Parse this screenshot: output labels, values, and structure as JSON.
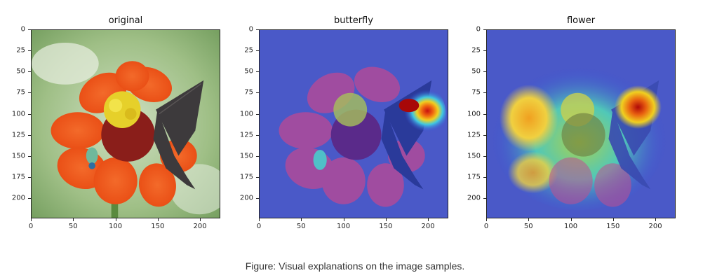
{
  "panels": [
    {
      "title": "original"
    },
    {
      "title": "butterfly"
    },
    {
      "title": "flower"
    }
  ],
  "axes": {
    "x_ticks": [
      "0",
      "50",
      "100",
      "150",
      "200"
    ],
    "y_ticks": [
      "0",
      "25",
      "50",
      "75",
      "100",
      "125",
      "150",
      "175",
      "200"
    ],
    "x_tick_values": [
      0,
      50,
      100,
      150,
      200
    ],
    "y_tick_values": [
      0,
      25,
      50,
      75,
      100,
      125,
      150,
      175,
      200
    ],
    "xlim": [
      0,
      224
    ],
    "ylim": [
      224,
      0
    ]
  },
  "caption": "Figure: Visual explanations on the image samples.",
  "colors": {
    "petal": "#f0561a",
    "flower_center": "#e6d02a",
    "butterfly": "#3d3a3c",
    "background_green": "#8fb07a",
    "heat_overlay_base": "#3a4bd6",
    "heat_hot": "#c81010",
    "heat_warm": "#f0c020"
  }
}
